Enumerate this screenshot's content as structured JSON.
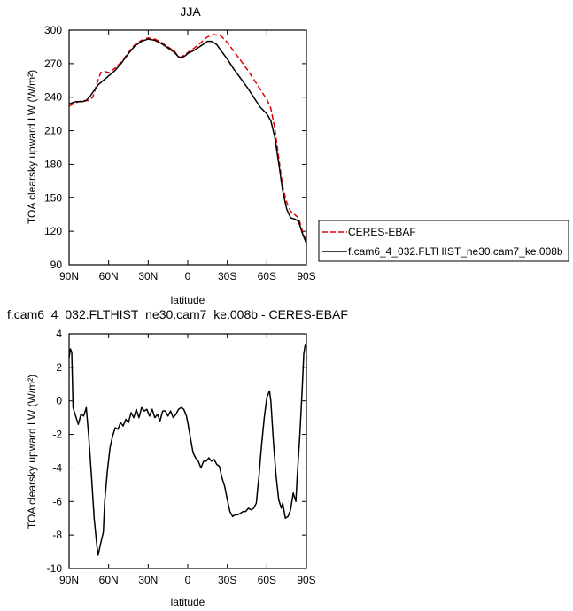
{
  "chart_data": [
    {
      "type": "line",
      "title": "JJA",
      "xlabel": "latitude",
      "ylabel": "TOA clearsky upward LW (W/m²)",
      "xlim": [
        90,
        -90
      ],
      "ylim": [
        90,
        300
      ],
      "xticks": [
        90,
        60,
        30,
        0,
        -30,
        -60,
        -90
      ],
      "xticklabels": [
        "90N",
        "60N",
        "30N",
        "0",
        "30S",
        "60S",
        "90S"
      ],
      "yticks": [
        90,
        120,
        150,
        180,
        210,
        240,
        270,
        300
      ],
      "yticklabels": [
        "90",
        "120",
        "150",
        "180",
        "210",
        "240",
        "270",
        "300"
      ],
      "legend_position": "right",
      "series": [
        {
          "name": "CERES-EBAF",
          "color": "#e00000",
          "dash": "dashed",
          "points": [
            [
              90,
              232
            ],
            [
              85,
              235
            ],
            [
              80,
              237
            ],
            [
              75,
              237
            ],
            [
              72,
              240
            ],
            [
              69,
              252
            ],
            [
              66,
              262
            ],
            [
              63,
              263
            ],
            [
              60,
              262
            ],
            [
              55,
              266
            ],
            [
              50,
              272
            ],
            [
              45,
              280
            ],
            [
              40,
              287
            ],
            [
              35,
              291
            ],
            [
              30,
              293
            ],
            [
              25,
              292
            ],
            [
              20,
              289
            ],
            [
              15,
              285
            ],
            [
              10,
              281
            ],
            [
              7,
              276
            ],
            [
              5,
              276
            ],
            [
              2,
              278
            ],
            [
              0,
              280
            ],
            [
              -5,
              284
            ],
            [
              -10,
              289
            ],
            [
              -15,
              294
            ],
            [
              -20,
              296
            ],
            [
              -25,
              295
            ],
            [
              -30,
              289
            ],
            [
              -35,
              281
            ],
            [
              -40,
              273
            ],
            [
              -45,
              265
            ],
            [
              -50,
              256
            ],
            [
              -55,
              247
            ],
            [
              -60,
              238
            ],
            [
              -63,
              230
            ],
            [
              -66,
              212
            ],
            [
              -69,
              186
            ],
            [
              -72,
              160
            ],
            [
              -75,
              146
            ],
            [
              -78,
              138
            ],
            [
              -81,
              135
            ],
            [
              -84,
              132
            ],
            [
              -87,
              120
            ],
            [
              -90,
              111
            ]
          ]
        },
        {
          "name": "f.cam6_4_032.FLTHIST_ne30.cam7_ke.008b",
          "color": "#000000",
          "dash": "solid",
          "points": [
            [
              90,
              234
            ],
            [
              85,
              236
            ],
            [
              80,
              236
            ],
            [
              77,
              237
            ],
            [
              74,
              241
            ],
            [
              71,
              246
            ],
            [
              68,
              251
            ],
            [
              65,
              254
            ],
            [
              62,
              257
            ],
            [
              60,
              259
            ],
            [
              55,
              264
            ],
            [
              50,
              271
            ],
            [
              45,
              279
            ],
            [
              40,
              286
            ],
            [
              35,
              290
            ],
            [
              30,
              292
            ],
            [
              25,
              291
            ],
            [
              20,
              288
            ],
            [
              15,
              284
            ],
            [
              10,
              280
            ],
            [
              7,
              276
            ],
            [
              5,
              275
            ],
            [
              2,
              277
            ],
            [
              0,
              279
            ],
            [
              -5,
              282
            ],
            [
              -10,
              286
            ],
            [
              -15,
              290
            ],
            [
              -18,
              290
            ],
            [
              -22,
              287
            ],
            [
              -25,
              282
            ],
            [
              -30,
              274
            ],
            [
              -35,
              265
            ],
            [
              -40,
              257
            ],
            [
              -45,
              249
            ],
            [
              -50,
              240
            ],
            [
              -55,
              231
            ],
            [
              -60,
              225
            ],
            [
              -63,
              219
            ],
            [
              -66,
              204
            ],
            [
              -69,
              181
            ],
            [
              -72,
              156
            ],
            [
              -75,
              140
            ],
            [
              -78,
              132
            ],
            [
              -81,
              131
            ],
            [
              -84,
              129
            ],
            [
              -87,
              118
            ],
            [
              -90,
              109
            ]
          ]
        }
      ]
    },
    {
      "type": "line",
      "title": "f.cam6_4_032.FLTHIST_ne30.cam7_ke.008b - CERES-EBAF",
      "xlabel": "latitude",
      "ylabel": "TOA clearsky upward LW (W/m²)",
      "xlim": [
        90,
        -90
      ],
      "ylim": [
        -10,
        4
      ],
      "xticks": [
        90,
        60,
        30,
        0,
        -30,
        -60,
        -90
      ],
      "xticklabels": [
        "90N",
        "60N",
        "30N",
        "0",
        "30S",
        "60S",
        "90S"
      ],
      "yticks": [
        -10,
        -8,
        -6,
        -4,
        -2,
        0,
        2,
        4
      ],
      "yticklabels": [
        "-10",
        "-8",
        "-6",
        "-4",
        "-2",
        "0",
        "2",
        "4"
      ],
      "series": [
        {
          "color": "#000000",
          "dash": "solid",
          "points": [
            [
              90,
              2.6
            ],
            [
              89,
              3.1
            ],
            [
              88,
              2.9
            ],
            [
              87,
              -0.4
            ],
            [
              85,
              -0.9
            ],
            [
              83,
              -1.4
            ],
            [
              81,
              -0.8
            ],
            [
              79,
              -0.9
            ],
            [
              77,
              -0.4
            ],
            [
              75,
              -2.2
            ],
            [
              73,
              -4.5
            ],
            [
              71,
              -7.0
            ],
            [
              69,
              -8.6
            ],
            [
              68,
              -9.2
            ],
            [
              66,
              -8.5
            ],
            [
              64,
              -7.8
            ],
            [
              63,
              -6.0
            ],
            [
              61,
              -4.2
            ],
            [
              59,
              -2.8
            ],
            [
              57,
              -2.1
            ],
            [
              55,
              -1.6
            ],
            [
              53,
              -1.7
            ],
            [
              51,
              -1.3
            ],
            [
              49,
              -1.5
            ],
            [
              47,
              -1.1
            ],
            [
              45,
              -1.3
            ],
            [
              43,
              -0.7
            ],
            [
              41,
              -1.0
            ],
            [
              39,
              -0.5
            ],
            [
              37,
              -1.0
            ],
            [
              35,
              -0.4
            ],
            [
              33,
              -0.6
            ],
            [
              31,
              -0.5
            ],
            [
              29,
              -0.9
            ],
            [
              27,
              -0.5
            ],
            [
              25,
              -1.0
            ],
            [
              23,
              -0.8
            ],
            [
              21,
              -1.2
            ],
            [
              19,
              -0.6
            ],
            [
              17,
              -0.6
            ],
            [
              15,
              -0.9
            ],
            [
              13,
              -0.6
            ],
            [
              11,
              -1.0
            ],
            [
              9,
              -0.8
            ],
            [
              7,
              -0.5
            ],
            [
              5,
              -0.4
            ],
            [
              3,
              -0.5
            ],
            [
              1,
              -0.9
            ],
            [
              0,
              -1.3
            ],
            [
              -2,
              -2.2
            ],
            [
              -4,
              -3.1
            ],
            [
              -6,
              -3.4
            ],
            [
              -8,
              -3.6
            ],
            [
              -10,
              -4.0
            ],
            [
              -12,
              -3.6
            ],
            [
              -14,
              -3.6
            ],
            [
              -16,
              -3.4
            ],
            [
              -18,
              -3.6
            ],
            [
              -20,
              -3.5
            ],
            [
              -22,
              -3.8
            ],
            [
              -24,
              -3.9
            ],
            [
              -26,
              -4.6
            ],
            [
              -28,
              -5.1
            ],
            [
              -30,
              -5.9
            ],
            [
              -32,
              -6.6
            ],
            [
              -34,
              -6.9
            ],
            [
              -36,
              -6.8
            ],
            [
              -38,
              -6.8
            ],
            [
              -40,
              -6.7
            ],
            [
              -42,
              -6.6
            ],
            [
              -44,
              -6.6
            ],
            [
              -46,
              -6.4
            ],
            [
              -48,
              -6.5
            ],
            [
              -50,
              -6.4
            ],
            [
              -52,
              -6.1
            ],
            [
              -54,
              -4.5
            ],
            [
              -56,
              -2.6
            ],
            [
              -58,
              -1.0
            ],
            [
              -60,
              0.2
            ],
            [
              -62,
              0.6
            ],
            [
              -63,
              0.0
            ],
            [
              -65,
              -2.5
            ],
            [
              -67,
              -4.5
            ],
            [
              -69,
              -5.9
            ],
            [
              -71,
              -6.4
            ],
            [
              -72,
              -6.1
            ],
            [
              -74,
              -7.0
            ],
            [
              -76,
              -6.9
            ],
            [
              -78,
              -6.5
            ],
            [
              -80,
              -5.5
            ],
            [
              -82,
              -6.0
            ],
            [
              -83,
              -4.5
            ],
            [
              -85,
              -2.0
            ],
            [
              -87,
              1.0
            ],
            [
              -88,
              2.8
            ],
            [
              -89,
              3.3
            ],
            [
              -90,
              3.4
            ]
          ]
        }
      ]
    }
  ]
}
